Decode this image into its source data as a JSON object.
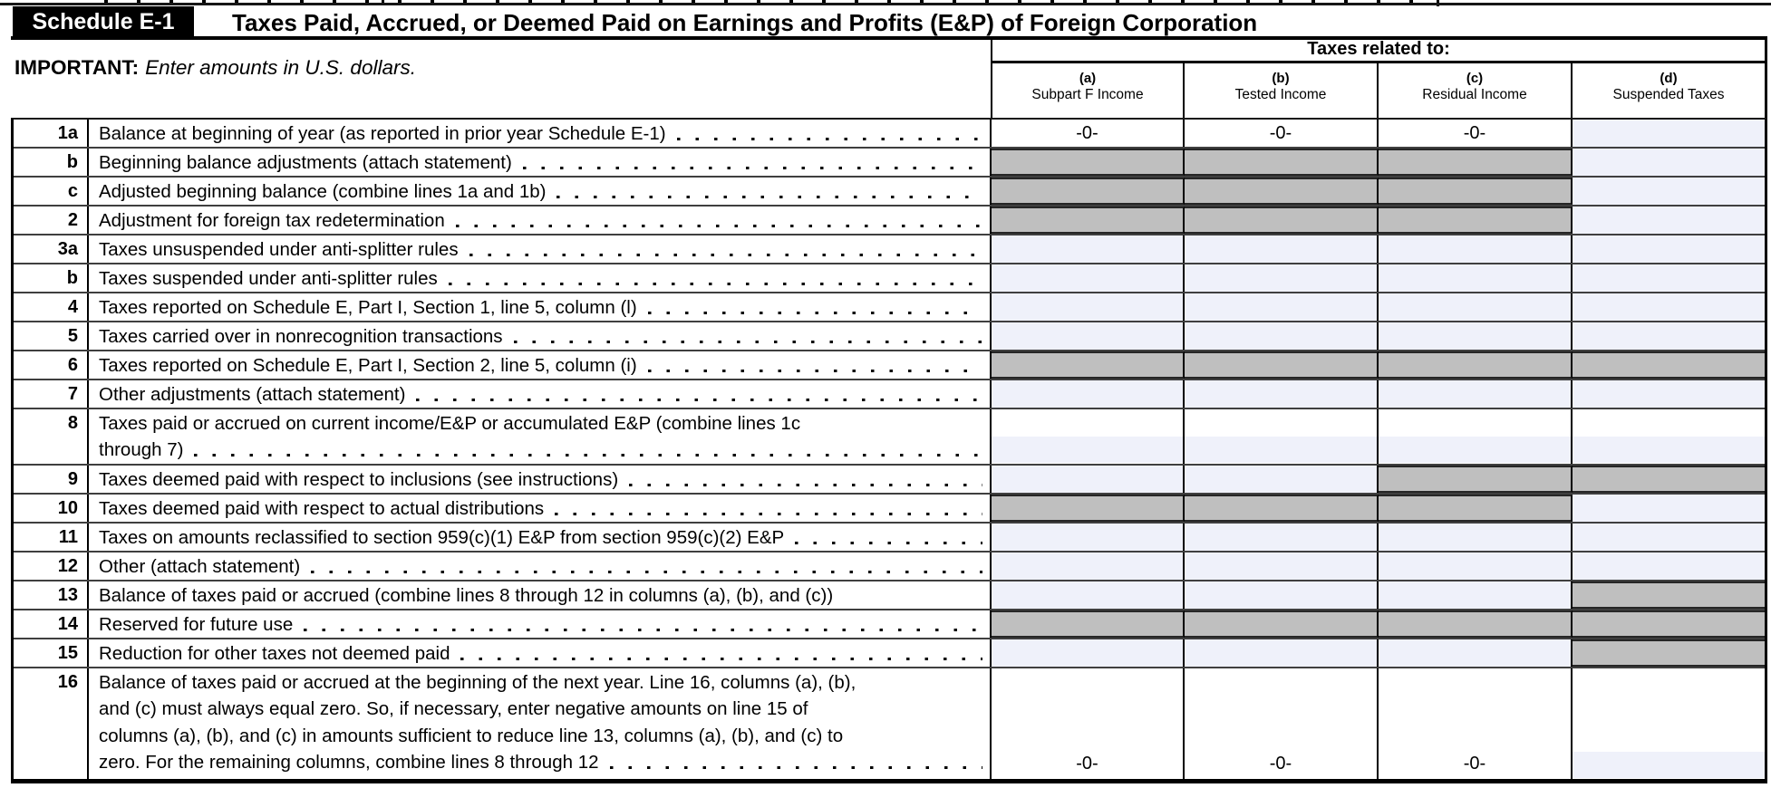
{
  "page": {
    "schedule_label": "Schedule E-1",
    "title": "Taxes Paid, Accrued, or Deemed Paid on Earnings and Profits (E&P) of Foreign Corporation",
    "important": {
      "label": "IMPORTANT:",
      "text": "Enter amounts in U.S. dollars."
    },
    "taxes_related_label": "Taxes related to:",
    "columns": [
      {
        "letter": "(a)",
        "title": "Subpart F Income"
      },
      {
        "letter": "(b)",
        "title": "Tested Income"
      },
      {
        "letter": "(c)",
        "title": "Residual Income"
      },
      {
        "letter": "(d)",
        "title": "Suspended Taxes"
      }
    ],
    "colors": {
      "blocked_cell": "#bfbfbf",
      "input_cell": "#eff1fa"
    },
    "rows": [
      {
        "num": "1a",
        "lines": [
          "Balance at beginning of year (as reported in prior year Schedule E-1)"
        ],
        "leader": true,
        "cells": [
          {
            "type": "value",
            "text": "-0-"
          },
          {
            "type": "value",
            "text": "-0-"
          },
          {
            "type": "value",
            "text": "-0-"
          },
          {
            "type": "input"
          }
        ]
      },
      {
        "num": "b",
        "lines": [
          "Beginning balance adjustments (attach statement)"
        ],
        "leader": true,
        "cells": [
          {
            "type": "blocked"
          },
          {
            "type": "blocked"
          },
          {
            "type": "blocked"
          },
          {
            "type": "input"
          }
        ]
      },
      {
        "num": "c",
        "lines": [
          "Adjusted beginning balance (combine lines 1a and 1b)"
        ],
        "leader": true,
        "cells": [
          {
            "type": "blocked"
          },
          {
            "type": "blocked"
          },
          {
            "type": "blocked"
          },
          {
            "type": "input"
          }
        ]
      },
      {
        "num": "2",
        "lines": [
          "Adjustment for foreign tax redetermination"
        ],
        "leader": true,
        "cells": [
          {
            "type": "blocked"
          },
          {
            "type": "blocked"
          },
          {
            "type": "blocked"
          },
          {
            "type": "input"
          }
        ]
      },
      {
        "num": "3a",
        "lines": [
          "Taxes unsuspended under anti-splitter rules"
        ],
        "leader": true,
        "cells": [
          {
            "type": "input"
          },
          {
            "type": "input"
          },
          {
            "type": "input"
          },
          {
            "type": "input"
          }
        ]
      },
      {
        "num": "b",
        "lines": [
          "Taxes suspended under anti-splitter rules"
        ],
        "leader": true,
        "cells": [
          {
            "type": "input"
          },
          {
            "type": "input"
          },
          {
            "type": "input"
          },
          {
            "type": "input"
          }
        ]
      },
      {
        "num": "4",
        "lines": [
          "Taxes reported on Schedule E, Part I, Section 1, line 5, column (l)"
        ],
        "leader": true,
        "cells": [
          {
            "type": "input"
          },
          {
            "type": "input"
          },
          {
            "type": "input"
          },
          {
            "type": "input"
          }
        ]
      },
      {
        "num": "5",
        "lines": [
          "Taxes carried over in nonrecognition transactions"
        ],
        "leader": true,
        "cells": [
          {
            "type": "input"
          },
          {
            "type": "input"
          },
          {
            "type": "input"
          },
          {
            "type": "input"
          }
        ]
      },
      {
        "num": "6",
        "lines": [
          "Taxes reported on Schedule E, Part I, Section 2, line 5, column (i)"
        ],
        "leader": true,
        "cells": [
          {
            "type": "blocked"
          },
          {
            "type": "blocked"
          },
          {
            "type": "blocked"
          },
          {
            "type": "blocked"
          }
        ]
      },
      {
        "num": "7",
        "lines": [
          "Other adjustments (attach statement)"
        ],
        "leader": true,
        "cells": [
          {
            "type": "input"
          },
          {
            "type": "input"
          },
          {
            "type": "input"
          },
          {
            "type": "input"
          }
        ]
      },
      {
        "num": "8",
        "lines": [
          "Taxes paid or accrued on current income/E&P or accumulated E&P (combine lines 1c",
          "through 7)"
        ],
        "leader": true,
        "cells": [
          {
            "type": "input",
            "strip": true
          },
          {
            "type": "input",
            "strip": true
          },
          {
            "type": "input",
            "strip": true
          },
          {
            "type": "input",
            "strip": true
          }
        ]
      },
      {
        "num": "9",
        "lines": [
          "Taxes deemed paid with respect to inclusions (see instructions)"
        ],
        "leader": true,
        "cells": [
          {
            "type": "input"
          },
          {
            "type": "input"
          },
          {
            "type": "blocked"
          },
          {
            "type": "blocked"
          }
        ]
      },
      {
        "num": "10",
        "lines": [
          "Taxes deemed paid with respect to actual distributions"
        ],
        "leader": true,
        "cells": [
          {
            "type": "blocked"
          },
          {
            "type": "blocked"
          },
          {
            "type": "blocked"
          },
          {
            "type": "input"
          }
        ]
      },
      {
        "num": "11",
        "lines": [
          "Taxes on amounts reclassified to section 959(c)(1) E&P from section 959(c)(2) E&P"
        ],
        "leader": true,
        "cells": [
          {
            "type": "input"
          },
          {
            "type": "input"
          },
          {
            "type": "input"
          },
          {
            "type": "input"
          }
        ]
      },
      {
        "num": "12",
        "lines": [
          "Other (attach statement)"
        ],
        "leader": true,
        "cells": [
          {
            "type": "input"
          },
          {
            "type": "input"
          },
          {
            "type": "input"
          },
          {
            "type": "input"
          }
        ]
      },
      {
        "num": "13",
        "lines": [
          "Balance of taxes paid or accrued (combine lines 8 through 12 in columns (a), (b), and (c))"
        ],
        "leader": false,
        "cells": [
          {
            "type": "input"
          },
          {
            "type": "input"
          },
          {
            "type": "input"
          },
          {
            "type": "blocked"
          }
        ]
      },
      {
        "num": "14",
        "lines": [
          "Reserved for future use"
        ],
        "leader": true,
        "cells": [
          {
            "type": "blocked"
          },
          {
            "type": "blocked"
          },
          {
            "type": "blocked"
          },
          {
            "type": "blocked"
          }
        ]
      },
      {
        "num": "15",
        "lines": [
          "Reduction for other taxes not deemed paid"
        ],
        "leader": true,
        "cells": [
          {
            "type": "input"
          },
          {
            "type": "input"
          },
          {
            "type": "input"
          },
          {
            "type": "blocked"
          }
        ]
      },
      {
        "num": "16",
        "lines": [
          "Balance of taxes paid or accrued at the beginning of the next year. Line 16, columns (a), (b),",
          "and (c) must always equal zero. So, if necessary, enter negative amounts on line 15 of",
          "columns (a), (b), and (c) in amounts sufficient to reduce line 13, columns (a), (b), and (c) to",
          "zero. For the remaining columns, combine lines 8 through 12"
        ],
        "leader": true,
        "cells": [
          {
            "type": "value",
            "text": "-0-",
            "strip": true
          },
          {
            "type": "value",
            "text": "-0-",
            "strip": true
          },
          {
            "type": "value",
            "text": "-0-",
            "strip": true
          },
          {
            "type": "input",
            "strip": true
          }
        ]
      }
    ]
  }
}
